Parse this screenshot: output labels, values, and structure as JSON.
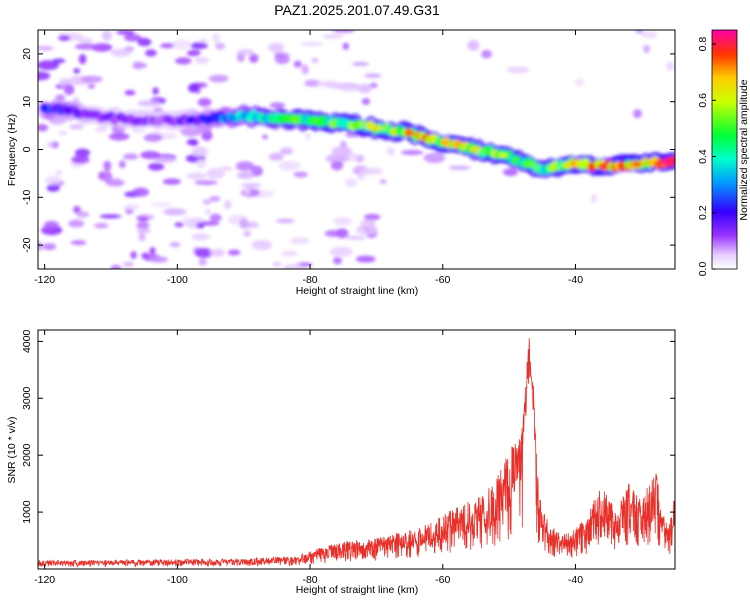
{
  "title": "PAZ1.2025.201.07.49.G31",
  "chart_data": [
    {
      "type": "heatmap",
      "xlabel": "Height of straight line (km)",
      "ylabel": "Frequency (Hz)",
      "xlim": [
        -121,
        -25
      ],
      "ylim": [
        -25,
        25
      ],
      "x_ticks": [
        -120,
        -100,
        -80,
        -60,
        -40
      ],
      "y_ticks": [
        -20,
        -10,
        0,
        10,
        20
      ],
      "colorbar": {
        "label": "Normalized spectral amplitude",
        "range": [
          0,
          0.85
        ],
        "ticks": [
          0.0,
          0.2,
          0.4,
          0.6,
          0.8
        ],
        "colormap": "rainbow (white-purple-blue-cyan-green-yellow-red-magenta)"
      },
      "ridge": {
        "description": "dominant spectral ridge (frequency in Hz vs height)",
        "x": [
          -118,
          -112,
          -106,
          -100,
          -95,
          -90,
          -85,
          -80,
          -75,
          -70,
          -65,
          -60,
          -55,
          -50,
          -47,
          -45,
          -40,
          -35,
          -30,
          -26
        ],
        "y": [
          8.5,
          7,
          6,
          6,
          6.5,
          7,
          6.5,
          6,
          5.5,
          4.5,
          3.5,
          1.5,
          0,
          -1.5,
          -3,
          -4,
          -3,
          -3.5,
          -3,
          -2.5
        ],
        "amplitude": [
          0.25,
          0.15,
          0.15,
          0.15,
          0.25,
          0.4,
          0.5,
          0.55,
          0.6,
          0.65,
          0.75,
          0.7,
          0.65,
          0.6,
          0.55,
          0.5,
          0.7,
          0.8,
          0.75,
          0.85
        ]
      }
    },
    {
      "type": "line",
      "xlabel": "Height of straight line (km)",
      "ylabel": "SNR (10 * v/v)",
      "xlim": [
        -121,
        -25
      ],
      "ylim": [
        0,
        4200
      ],
      "x_ticks": [
        -120,
        -100,
        -80,
        -60,
        -40
      ],
      "y_ticks": [
        1000,
        2000,
        3000,
        4000
      ],
      "color": "#e8302a",
      "envelope": {
        "description": "approximate local upper-envelope SNR vs height",
        "x": [
          -121,
          -110,
          -100,
          -90,
          -82,
          -78,
          -74,
          -70,
          -66,
          -62,
          -58,
          -54,
          -52,
          -50,
          -48,
          -47,
          -46.5,
          -45.5,
          -44,
          -42,
          -40,
          -38,
          -36,
          -34,
          -32,
          -30,
          -28,
          -26,
          -25
        ],
        "y": [
          150,
          160,
          170,
          180,
          230,
          400,
          500,
          550,
          650,
          800,
          1100,
          1300,
          1600,
          2100,
          2500,
          4100,
          3600,
          1300,
          800,
          600,
          700,
          1000,
          1600,
          1000,
          1500,
          1200,
          1800,
          700,
          1400
        ]
      }
    }
  ]
}
